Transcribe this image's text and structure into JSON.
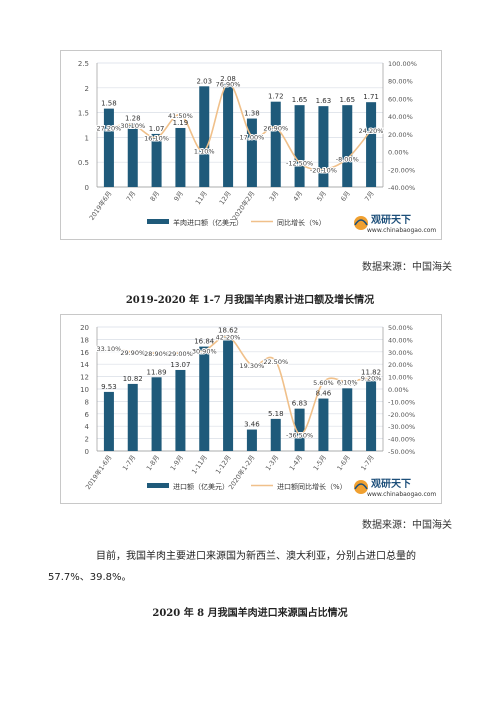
{
  "chart1": {
    "chart_data": {
      "type": "bar",
      "categories": [
        "2019年6月",
        "7月",
        "8月",
        "9月",
        "11月",
        "12月",
        "2020年2月",
        "3月",
        "4月",
        "5月",
        "6月",
        "7月"
      ],
      "series": [
        {
          "name": "羊肉进口额（亿美元）",
          "type": "bar",
          "values": [
            1.58,
            1.28,
            1.07,
            1.19,
            2.03,
            2.08,
            1.38,
            1.72,
            1.65,
            1.63,
            1.65,
            1.71
          ],
          "labels": [
            "1.58",
            "1.28",
            "1.07",
            "1.19",
            "2.03",
            "2.08",
            "1.38",
            "1.72",
            "1.65",
            "1.63",
            "1.65",
            "1.71"
          ]
        },
        {
          "name": "同比增长（%）",
          "type": "line",
          "axis": "right",
          "values": [
            27.2,
            30.1,
            16.1,
            41.5,
            1.1,
            76.9,
            17.0,
            26.9,
            -12.5,
            -20.1,
            -8.0,
            24.2
          ],
          "labels": [
            "27.20%",
            "30.10%",
            "16.10%",
            "41.50%",
            "1.10%",
            "76.90%",
            "17.00%",
            "26.90%",
            "-12.50%",
            "-20.10%",
            "-8.00%",
            "24.20%"
          ]
        }
      ],
      "ylim_left": [
        0,
        2.5
      ],
      "yticks_left": [
        "0",
        "0.5",
        "1",
        "1.5",
        "2",
        "2.5"
      ],
      "ylim_right": [
        -40,
        100
      ],
      "yticks_right": [
        "-40.00%",
        "-20.00%",
        "0.00%",
        "20.00%",
        "40.00%",
        "60.00%",
        "80.00%",
        "100.00%"
      ],
      "grid": true,
      "legend_position": "bottom"
    },
    "source": "数据来源：中国海关",
    "title": "2019-2020 年 1-7 月我国羊肉累计进口额及增长情况"
  },
  "chart2": {
    "chart_data": {
      "type": "bar",
      "categories": [
        "2019年1-6月",
        "1-7月",
        "1-8月",
        "1-9月",
        "1-11月",
        "1-12月",
        "2020年1-2月",
        "1-3月",
        "1-4月",
        "1-5月",
        "1-6月",
        "1-7月"
      ],
      "series": [
        {
          "name": "进口额（亿美元）",
          "type": "bar",
          "values": [
            9.53,
            10.82,
            11.89,
            13.07,
            16.84,
            18.62,
            3.46,
            5.18,
            6.83,
            8.46,
            10.11,
            11.82
          ],
          "labels": [
            "9.53",
            "10.82",
            "11.89",
            "13.07",
            "16.84",
            "18.62",
            "3.46",
            "5.18",
            "6.83",
            "8.46",
            "10.11",
            "11.82"
          ]
        },
        {
          "name": "进口额同比增长（%）",
          "type": "line",
          "axis": "right",
          "values": [
            33.1,
            29.9,
            28.9,
            29.0,
            30.9,
            42.2,
            19.3,
            22.5,
            -36.5,
            5.6,
            6.1,
            9.2
          ],
          "labels": [
            "33.10%",
            "29.90%",
            "28.90%",
            "29.00%",
            "30.90%",
            "42.20%",
            "19.30%",
            "22.50%",
            "-36.50%",
            "5.60%",
            "6.10%",
            "9.20%"
          ]
        }
      ],
      "ylim_left": [
        0,
        20
      ],
      "yticks_left": [
        "0",
        "2",
        "4",
        "6",
        "8",
        "10",
        "12",
        "14",
        "16",
        "18",
        "20"
      ],
      "ylim_right": [
        -50,
        50
      ],
      "yticks_right": [
        "-50.00%",
        "-40.00%",
        "-30.00%",
        "-20.00%",
        "-10.00%",
        "0.00%",
        "10.00%",
        "20.00%",
        "30.00%",
        "40.00%",
        "50.00%"
      ],
      "grid": true,
      "legend_position": "bottom"
    },
    "source": "数据来源：中国海关"
  },
  "logo": {
    "name": "观研天下",
    "url": "www.chinabaogao.com"
  },
  "paragraph": {
    "line1": "目前，我国羊肉主要进口来源国为新西兰、澳大利亚，分别占进口总量的",
    "line2": "57.7%、39.8%。"
  },
  "title3": "2020 年 8 月我国羊肉进口来源国占比情况",
  "colors": {
    "bar": "#1f5a7a",
    "line": "#f0c08a",
    "grid": "#d9dde6",
    "axis_text": "#555555"
  }
}
